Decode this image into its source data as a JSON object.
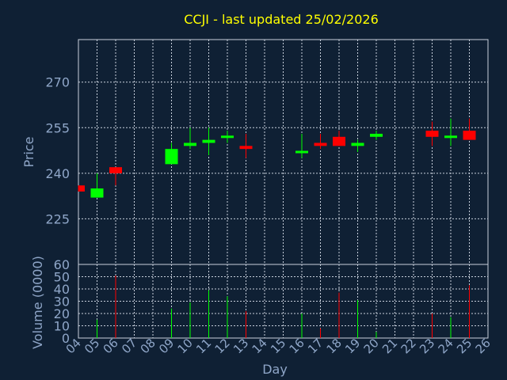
{
  "chart_data": {
    "type": "candlestick",
    "title": "CCJI - last updated 25/02/2026",
    "xlabel": "Day",
    "price_ylabel": "Price",
    "volume_ylabel": "Volume (0000)",
    "x_tick_labels": [
      "04",
      "05",
      "06",
      "07",
      "08",
      "09",
      "10",
      "11",
      "12",
      "13",
      "14",
      "15",
      "16",
      "17",
      "18",
      "19",
      "20",
      "21",
      "22",
      "23",
      "24",
      "25",
      "26"
    ],
    "price_axis": {
      "ticks": [
        225,
        240,
        255,
        270
      ],
      "range": [
        210,
        284
      ]
    },
    "volume_axis": {
      "ticks": [
        0,
        10,
        20,
        30,
        40,
        50,
        60
      ],
      "range": [
        0,
        60
      ]
    },
    "grid": true,
    "colors": {
      "background": "#0f2034",
      "up": "#00ff00",
      "down": "#ff0000",
      "title": "#ffff00",
      "axis_text": "#8fa6c8",
      "grid": "#c8d0dc",
      "axis_line": "#c8d0dc"
    },
    "candles": [
      {
        "day": "04",
        "open": 236,
        "high": 236,
        "low": 234,
        "close": 234,
        "volume": 0
      },
      {
        "day": "05",
        "open": 232,
        "high": 240,
        "low": 232,
        "close": 235,
        "volume": 15
      },
      {
        "day": "06",
        "open": 242,
        "high": 242,
        "low": 236,
        "close": 240,
        "volume": 51
      },
      {
        "day": "09",
        "open": 243,
        "high": 250,
        "low": 243,
        "close": 248,
        "volume": 24
      },
      {
        "day": "10",
        "open": 249,
        "high": 255,
        "low": 248,
        "close": 250,
        "volume": 29
      },
      {
        "day": "11",
        "open": 250,
        "high": 255,
        "low": 246,
        "close": 251,
        "volume": 39
      },
      {
        "day": "12",
        "open": 252,
        "high": 254,
        "low": 250,
        "close": 252,
        "volume": 34
      },
      {
        "day": "13",
        "open": 249,
        "high": 253,
        "low": 245,
        "close": 248,
        "volume": 22
      },
      {
        "day": "16",
        "open": 247,
        "high": 253,
        "low": 245,
        "close": 247,
        "volume": 20
      },
      {
        "day": "17",
        "open": 250,
        "high": 253,
        "low": 248,
        "close": 249,
        "volume": 8
      },
      {
        "day": "18",
        "open": 252,
        "high": 254,
        "low": 249,
        "close": 249,
        "volume": 37
      },
      {
        "day": "19",
        "open": 249,
        "high": 251,
        "low": 247,
        "close": 250,
        "volume": 31
      },
      {
        "day": "20",
        "open": 252,
        "high": 254,
        "low": 251,
        "close": 253,
        "volume": 5
      },
      {
        "day": "23",
        "open": 254,
        "high": 257,
        "low": 249,
        "close": 252,
        "volume": 20
      },
      {
        "day": "24",
        "open": 252,
        "high": 258,
        "low": 249,
        "close": 252,
        "volume": 17
      },
      {
        "day": "25",
        "open": 254,
        "high": 258,
        "low": 251,
        "close": 251,
        "volume": 43
      }
    ]
  }
}
